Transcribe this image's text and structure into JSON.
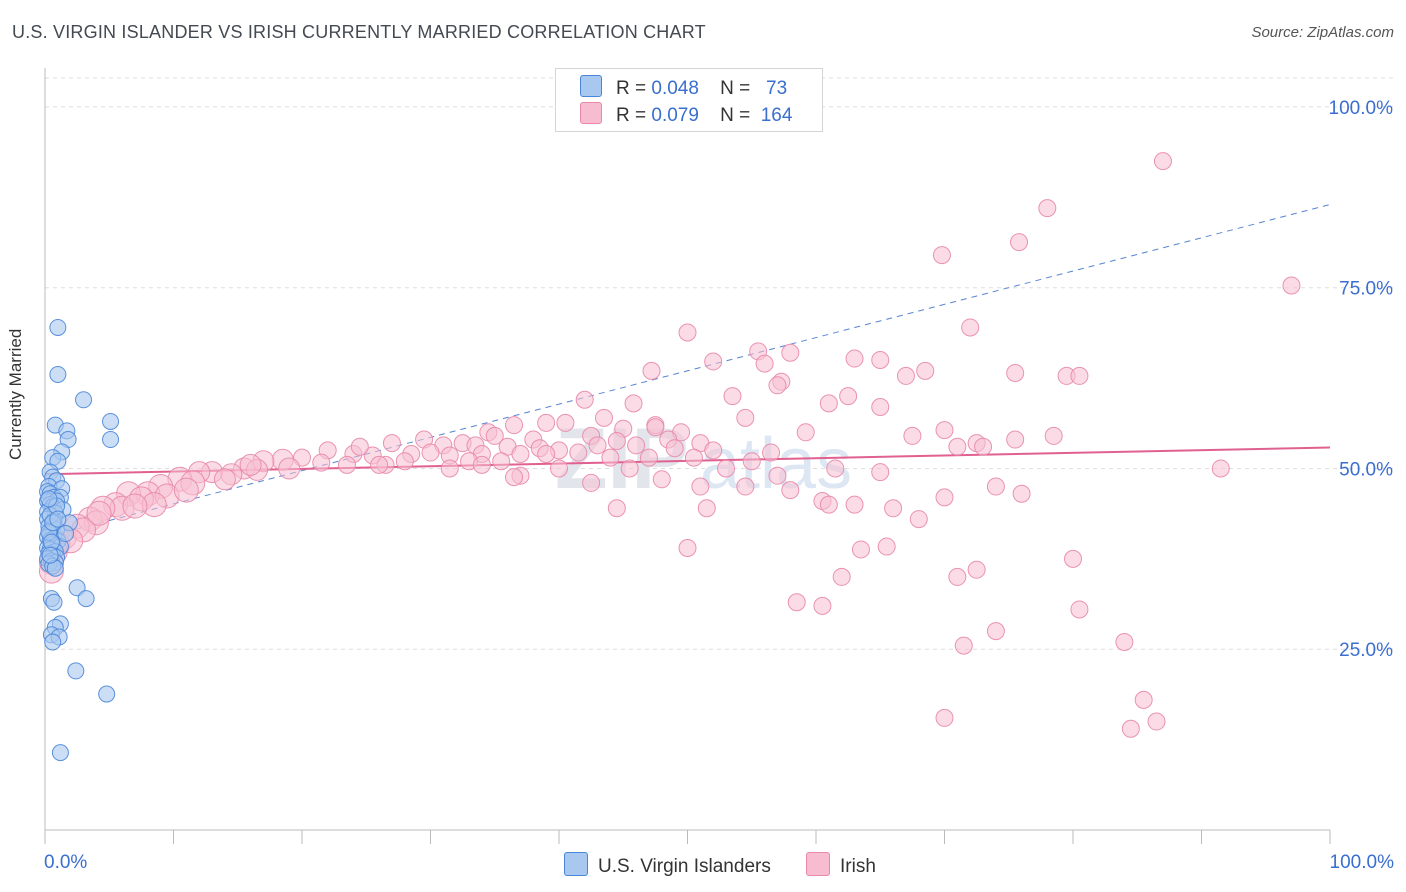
{
  "header": {
    "title": "U.S. VIRGIN ISLANDER VS IRISH CURRENTLY MARRIED CORRELATION CHART",
    "source": "Source: ZipAtlas.com"
  },
  "legend": {
    "rows": [
      {
        "r_label": "R =",
        "r_value": "0.048",
        "n_label": "N =",
        "n_value": "73",
        "color": "#a8c8f0"
      },
      {
        "r_label": "R =",
        "r_value": "0.079",
        "n_label": "N =",
        "n_value": "164",
        "color": "#f8bcd0"
      }
    ]
  },
  "bottom_legend": {
    "items": [
      {
        "label": "U.S. Virgin Islanders",
        "color": "#a8c8f0"
      },
      {
        "label": "Irish",
        "color": "#f8bcd0"
      }
    ]
  },
  "watermark": {
    "zip": "ZIP",
    "atlas": "atlas"
  },
  "colors": {
    "blue_fill": "#a8c8f0",
    "blue_stroke": "#4a86d8",
    "blue_line": "#3a6ecf",
    "pink_fill": "#f8c0d2",
    "pink_stroke": "#e888aa",
    "pink_line": "#e06090",
    "axis_text": "#3a6ecf",
    "grid": "#dddddd"
  },
  "chart_data": {
    "type": "scatter",
    "title": "U.S. VIRGIN ISLANDER VS IRISH CURRENTLY MARRIED CORRELATION CHART",
    "xlabel": "",
    "ylabel": "Currently Married",
    "xlim": [
      0,
      100
    ],
    "ylim": [
      0,
      104
    ],
    "x_tick_labels": [
      "0.0%",
      "100.0%"
    ],
    "y_ticks": [
      25,
      50,
      75,
      100
    ],
    "y_tick_labels": [
      "25.0%",
      "50.0%",
      "75.0%",
      "100.0%"
    ],
    "grid": true,
    "legend_position": "top-center",
    "series": [
      {
        "name": "U.S. Virgin Islanders",
        "R": 0.048,
        "N": 73,
        "trend": {
          "x": [
            0,
            100
          ],
          "y": [
            40.5,
            86.5
          ],
          "style": "dashed"
        },
        "points": [
          [
            1.0,
            69.5
          ],
          [
            1.0,
            63.0
          ],
          [
            3.0,
            59.5
          ],
          [
            5.1,
            56.5
          ],
          [
            0.8,
            56.0
          ],
          [
            1.7,
            55.2
          ],
          [
            1.8,
            54.0
          ],
          [
            5.1,
            54.0
          ],
          [
            1.3,
            52.3
          ],
          [
            0.6,
            51.5
          ],
          [
            1.0,
            51.0
          ],
          [
            0.4,
            49.5
          ],
          [
            0.6,
            48.8
          ],
          [
            0.9,
            48.3
          ],
          [
            0.3,
            47.5
          ],
          [
            1.3,
            47.2
          ],
          [
            0.2,
            46.8
          ],
          [
            0.4,
            46.5
          ],
          [
            0.7,
            46.0
          ],
          [
            1.2,
            46.0
          ],
          [
            0.2,
            45.5
          ],
          [
            0.9,
            45.5
          ],
          [
            0.4,
            45.0
          ],
          [
            0.6,
            44.7
          ],
          [
            1.4,
            44.3
          ],
          [
            0.2,
            44.0
          ],
          [
            0.8,
            43.8
          ],
          [
            0.2,
            43.0
          ],
          [
            0.7,
            42.8
          ],
          [
            1.9,
            42.5
          ],
          [
            0.3,
            42.0
          ],
          [
            0.6,
            41.8
          ],
          [
            0.9,
            41.5
          ],
          [
            0.4,
            41.0
          ],
          [
            0.2,
            40.5
          ],
          [
            0.7,
            40.3
          ],
          [
            0.4,
            40.0
          ],
          [
            1.0,
            40.0
          ],
          [
            0.6,
            39.5
          ],
          [
            1.2,
            39.2
          ],
          [
            0.2,
            39.0
          ],
          [
            0.4,
            38.8
          ],
          [
            0.8,
            38.5
          ],
          [
            0.3,
            38.2
          ],
          [
            0.6,
            38.0
          ],
          [
            0.9,
            37.7
          ],
          [
            0.2,
            37.5
          ],
          [
            0.5,
            37.2
          ],
          [
            0.8,
            37.0
          ],
          [
            0.3,
            36.8
          ],
          [
            0.6,
            36.5
          ],
          [
            2.5,
            33.5
          ],
          [
            3.2,
            32.0
          ],
          [
            0.5,
            32.0
          ],
          [
            0.7,
            31.5
          ],
          [
            1.2,
            28.5
          ],
          [
            0.8,
            28.0
          ],
          [
            0.5,
            27.0
          ],
          [
            1.1,
            26.7
          ],
          [
            0.6,
            26.0
          ],
          [
            2.4,
            22.0
          ],
          [
            4.8,
            18.8
          ],
          [
            1.2,
            10.7
          ],
          [
            0.4,
            43.5
          ],
          [
            0.9,
            44.8
          ],
          [
            0.3,
            41.2
          ],
          [
            1.6,
            41.0
          ],
          [
            0.5,
            39.8
          ],
          [
            0.8,
            36.2
          ],
          [
            0.4,
            38.0
          ],
          [
            0.6,
            42.5
          ],
          [
            0.3,
            45.8
          ],
          [
            1.0,
            43.0
          ]
        ]
      },
      {
        "name": "Irish",
        "R": 0.079,
        "N": 164,
        "trend": {
          "x": [
            0,
            100
          ],
          "y": [
            49.2,
            52.9
          ],
          "style": "solid"
        },
        "points": [
          [
            87.0,
            92.5
          ],
          [
            78.0,
            86.0
          ],
          [
            75.8,
            81.3
          ],
          [
            69.8,
            79.5
          ],
          [
            97.0,
            75.3
          ],
          [
            72.0,
            69.5
          ],
          [
            50.0,
            68.8
          ],
          [
            55.5,
            66.2
          ],
          [
            58.0,
            66.0
          ],
          [
            63.0,
            65.2
          ],
          [
            65.0,
            65.0
          ],
          [
            52.0,
            64.8
          ],
          [
            56.0,
            64.5
          ],
          [
            47.2,
            63.5
          ],
          [
            68.5,
            63.5
          ],
          [
            67.0,
            62.8
          ],
          [
            75.5,
            63.2
          ],
          [
            79.5,
            62.8
          ],
          [
            80.5,
            62.8
          ],
          [
            57.3,
            62.0
          ],
          [
            57.0,
            61.5
          ],
          [
            53.5,
            60.0
          ],
          [
            42.0,
            59.5
          ],
          [
            62.5,
            60.0
          ],
          [
            45.8,
            59.0
          ],
          [
            61.0,
            59.0
          ],
          [
            47.5,
            56.0
          ],
          [
            65.0,
            58.5
          ],
          [
            54.5,
            57.0
          ],
          [
            43.5,
            57.0
          ],
          [
            36.5,
            56.0
          ],
          [
            39.0,
            56.3
          ],
          [
            40.5,
            56.3
          ],
          [
            45.0,
            55.5
          ],
          [
            47.5,
            55.7
          ],
          [
            49.5,
            55.0
          ],
          [
            59.2,
            55.0
          ],
          [
            70.0,
            55.3
          ],
          [
            34.5,
            55.0
          ],
          [
            32.5,
            53.5
          ],
          [
            35.0,
            54.5
          ],
          [
            38.0,
            54.0
          ],
          [
            42.5,
            54.5
          ],
          [
            44.5,
            53.8
          ],
          [
            48.5,
            54.0
          ],
          [
            51.0,
            53.5
          ],
          [
            75.5,
            54.0
          ],
          [
            29.5,
            54.0
          ],
          [
            27.0,
            53.5
          ],
          [
            31.0,
            53.2
          ],
          [
            33.5,
            53.2
          ],
          [
            36.0,
            53.0
          ],
          [
            38.5,
            52.8
          ],
          [
            40.0,
            52.5
          ],
          [
            43.0,
            53.2
          ],
          [
            46.0,
            53.2
          ],
          [
            49.0,
            52.8
          ],
          [
            52.0,
            52.5
          ],
          [
            56.5,
            52.2
          ],
          [
            72.5,
            53.5
          ],
          [
            73.0,
            53.0
          ],
          [
            22.0,
            52.5
          ],
          [
            24.0,
            52.0
          ],
          [
            25.5,
            51.8
          ],
          [
            28.5,
            52.0
          ],
          [
            30.0,
            52.2
          ],
          [
            31.5,
            51.8
          ],
          [
            34.0,
            52.0
          ],
          [
            37.0,
            52.0
          ],
          [
            39.0,
            52.0
          ],
          [
            41.5,
            52.2
          ],
          [
            44.0,
            51.5
          ],
          [
            47.0,
            51.5
          ],
          [
            50.5,
            51.5
          ],
          [
            55.0,
            51.0
          ],
          [
            20.0,
            51.5
          ],
          [
            18.5,
            51.2
          ],
          [
            17.0,
            51.0
          ],
          [
            21.5,
            50.8
          ],
          [
            23.5,
            50.5
          ],
          [
            26.5,
            50.5
          ],
          [
            28.0,
            51.0
          ],
          [
            33.0,
            51.0
          ],
          [
            35.5,
            51.0
          ],
          [
            15.5,
            50.0
          ],
          [
            16.5,
            49.8
          ],
          [
            13.0,
            49.5
          ],
          [
            14.5,
            49.2
          ],
          [
            12.0,
            49.5
          ],
          [
            10.5,
            48.5
          ],
          [
            11.5,
            48.0
          ],
          [
            9.0,
            47.5
          ],
          [
            8.0,
            46.5
          ],
          [
            6.5,
            46.5
          ],
          [
            7.5,
            45.8
          ],
          [
            9.5,
            46.2
          ],
          [
            5.5,
            45.0
          ],
          [
            6.0,
            44.5
          ],
          [
            4.5,
            44.5
          ],
          [
            3.5,
            43.0
          ],
          [
            4.0,
            42.5
          ],
          [
            2.5,
            42.0
          ],
          [
            1.5,
            40.5
          ],
          [
            1.0,
            39.5
          ],
          [
            0.8,
            38.5
          ],
          [
            0.5,
            37.0
          ],
          [
            0.5,
            35.8
          ],
          [
            31.5,
            50.0
          ],
          [
            34.0,
            50.5
          ],
          [
            40.0,
            50.0
          ],
          [
            45.5,
            50.0
          ],
          [
            53.0,
            50.0
          ],
          [
            61.5,
            50.0
          ],
          [
            65.0,
            49.5
          ],
          [
            57.0,
            49.0
          ],
          [
            48.0,
            48.5
          ],
          [
            37.0,
            49.0
          ],
          [
            42.5,
            48.0
          ],
          [
            51.0,
            47.5
          ],
          [
            54.5,
            47.5
          ],
          [
            60.5,
            45.5
          ],
          [
            61.0,
            45.0
          ],
          [
            63.0,
            45.0
          ],
          [
            66.0,
            44.5
          ],
          [
            68.0,
            43.0
          ],
          [
            70.0,
            46.0
          ],
          [
            76.0,
            46.5
          ],
          [
            74.0,
            47.5
          ],
          [
            51.5,
            44.5
          ],
          [
            44.5,
            44.5
          ],
          [
            58.0,
            47.0
          ],
          [
            36.5,
            48.8
          ],
          [
            50.0,
            39.0
          ],
          [
            65.5,
            39.2
          ],
          [
            63.5,
            38.8
          ],
          [
            72.5,
            36.0
          ],
          [
            80.0,
            37.5
          ],
          [
            71.0,
            35.0
          ],
          [
            62.0,
            35.0
          ],
          [
            58.5,
            31.5
          ],
          [
            60.5,
            31.0
          ],
          [
            80.5,
            30.5
          ],
          [
            74.0,
            27.5
          ],
          [
            84.0,
            26.0
          ],
          [
            71.5,
            25.5
          ],
          [
            85.5,
            18.0
          ],
          [
            84.5,
            14.0
          ],
          [
            70.0,
            15.5
          ],
          [
            86.5,
            15.0
          ],
          [
            91.5,
            50.0
          ],
          [
            78.5,
            54.5
          ],
          [
            71.0,
            53.0
          ],
          [
            67.5,
            54.5
          ],
          [
            24.5,
            53.0
          ],
          [
            26.0,
            50.5
          ],
          [
            19.0,
            50.0
          ],
          [
            16.0,
            50.5
          ],
          [
            14.0,
            48.5
          ],
          [
            11.0,
            47.0
          ],
          [
            8.5,
            45.0
          ],
          [
            3.0,
            41.5
          ],
          [
            2.0,
            40.0
          ],
          [
            4.2,
            43.8
          ],
          [
            7.0,
            44.8
          ]
        ]
      }
    ]
  }
}
